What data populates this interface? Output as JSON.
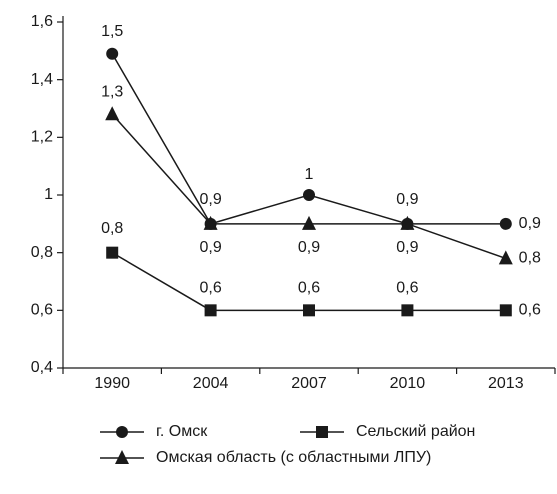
{
  "chart_data": {
    "type": "line",
    "categories": [
      "1990",
      "2004",
      "2007",
      "2010",
      "2013"
    ],
    "series": [
      {
        "name": "г. Омск",
        "color": "#1a1a1a",
        "marker": "circle",
        "values": [
          1.49,
          0.9,
          1.0,
          0.9,
          0.9
        ],
        "value_labels": [
          "1,5",
          "0,9",
          "1",
          "0,9",
          "0,9"
        ]
      },
      {
        "name": "Сельский район",
        "color": "#1a1a1a",
        "marker": "square",
        "values": [
          0.8,
          0.6,
          0.6,
          0.6,
          0.6
        ],
        "value_labels": [
          "0,8",
          "0,6",
          "0,6",
          "0,6",
          "0,6"
        ]
      },
      {
        "name": "Омская область (с областными ЛПУ)",
        "color": "#1a1a1a",
        "marker": "triangle",
        "values": [
          1.28,
          0.9,
          0.9,
          0.9,
          0.78
        ],
        "value_labels": [
          "1,3",
          "0,9",
          "0,9",
          "0,9",
          "0,8"
        ]
      }
    ],
    "ylim": [
      0.4,
      1.6
    ],
    "yticks": [
      {
        "value": 0.4,
        "label": "0,4"
      },
      {
        "value": 0.6,
        "label": "0,6"
      },
      {
        "value": 0.8,
        "label": "0,8"
      },
      1,
      {
        "value": 1.2,
        "label": "1,2"
      },
      {
        "value": 1.4,
        "label": "1,4"
      },
      {
        "value": 1.6,
        "label": "1,6"
      }
    ],
    "grid": false,
    "legend": "bottom"
  }
}
